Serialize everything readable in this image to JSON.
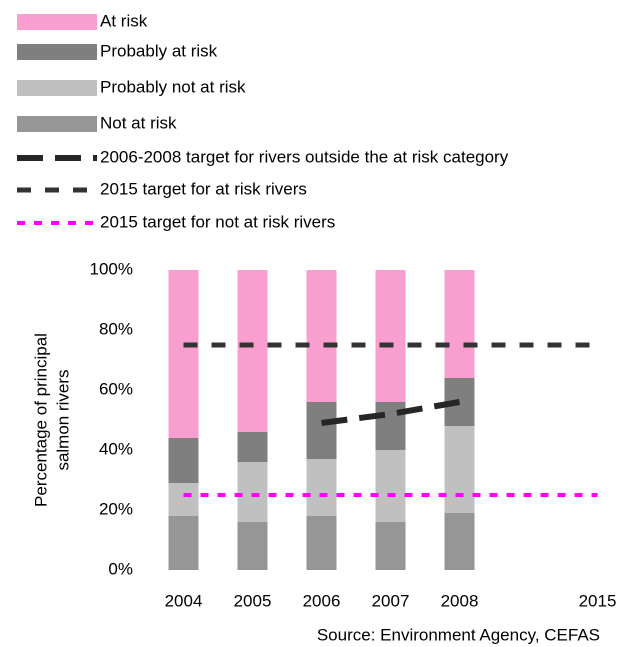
{
  "chart_data": {
    "type": "bar",
    "stacked": true,
    "categories": [
      "2004",
      "2005",
      "2006",
      "2007",
      "2008",
      null,
      "2015"
    ],
    "series": [
      {
        "name": "At risk",
        "type": "bar",
        "color": "#f99fcf",
        "values": [
          56,
          54,
          44,
          44,
          36,
          null,
          null
        ]
      },
      {
        "name": "Probably at risk",
        "type": "bar",
        "color": "#7f7f7f",
        "values": [
          15,
          10,
          19,
          16,
          16,
          null,
          null
        ]
      },
      {
        "name": "Probably not at risk",
        "type": "bar",
        "color": "#c0c0c0",
        "values": [
          11,
          20,
          19,
          24,
          29,
          null,
          null
        ]
      },
      {
        "name": "Not at risk",
        "type": "bar",
        "color": "#969696",
        "values": [
          18,
          16,
          18,
          16,
          19,
          null,
          null
        ]
      },
      {
        "name": "2006-2008 target for rivers outside the at risk category",
        "type": "line",
        "color": "#262626",
        "values": [
          null,
          null,
          49,
          52,
          56,
          null,
          null
        ]
      },
      {
        "name": "2015 target for at risk rivers",
        "type": "line",
        "color": "#333333",
        "values": [
          75,
          75,
          75,
          75,
          75,
          75,
          75
        ]
      },
      {
        "name": "2015 target for not at risk rivers",
        "type": "line",
        "color": "#ff00ff",
        "values": [
          25,
          25,
          25,
          25,
          25,
          25,
          25
        ]
      }
    ],
    "ylabel": [
      "Percentage of principal",
      "salmon rivers"
    ],
    "ylim": [
      0,
      100
    ],
    "yticks": [
      {
        "value": 0,
        "label": "0%"
      },
      {
        "value": 20,
        "label": "20%"
      },
      {
        "value": 40,
        "label": "40%"
      },
      {
        "value": 60,
        "label": "60%"
      },
      {
        "value": 80,
        "label": "80%"
      },
      {
        "value": 100,
        "label": "100%"
      }
    ],
    "source": "Source: Environment Agency, CEFAS",
    "legend": "top"
  }
}
